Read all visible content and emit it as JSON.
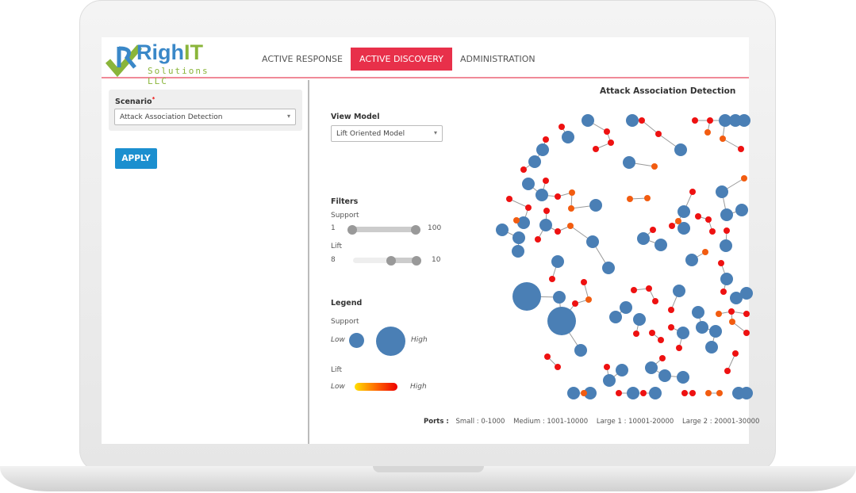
{
  "header": {
    "logo": {
      "name": "RighIT",
      "name_main": "Righ",
      "name_accent": "IT",
      "sub": "Solutions LLC"
    },
    "nav": [
      {
        "label": "ACTIVE RESPONSE",
        "active": false
      },
      {
        "label": "ACTIVE DISCOVERY",
        "active": true
      },
      {
        "label": "ADMINISTRATION",
        "active": false
      }
    ]
  },
  "sidebar": {
    "scenario_label": "Scenario",
    "required_mark": "*",
    "scenario_value": "Attack Association Detection",
    "apply_label": "APPLY"
  },
  "main": {
    "title": "Attack Association Detection",
    "view_model_label": "View Model",
    "view_model_value": "Lift Oriented Model",
    "filters": {
      "title": "Filters",
      "support": {
        "label": "Support",
        "min": "1",
        "max": "100",
        "range": [
          1,
          100
        ],
        "selected": [
          1,
          100
        ]
      },
      "lift": {
        "label": "Lift",
        "min": "8",
        "max": "10",
        "range": [
          8,
          10
        ],
        "selected": [
          9,
          10
        ]
      }
    },
    "legend": {
      "title": "Legend",
      "support_label": "Support",
      "low": "Low",
      "high": "High",
      "lift_label": "Lift",
      "lift_low": "Low",
      "lift_high": "High"
    },
    "ports": {
      "label": "Ports :",
      "items": [
        "Small : 0-1000",
        "Medium : 1001-10000",
        "Large 1 : 10001-20000",
        "Large 2 : 20001-30000"
      ]
    }
  },
  "colors": {
    "accent": "#e8304a",
    "node_blue": "#4a7fb5",
    "node_red": "#ee1111",
    "node_orange": "#f25c10",
    "apply": "#1b8fcf",
    "logo_blue": "#3a88c8",
    "logo_green": "#8ab53a"
  }
}
